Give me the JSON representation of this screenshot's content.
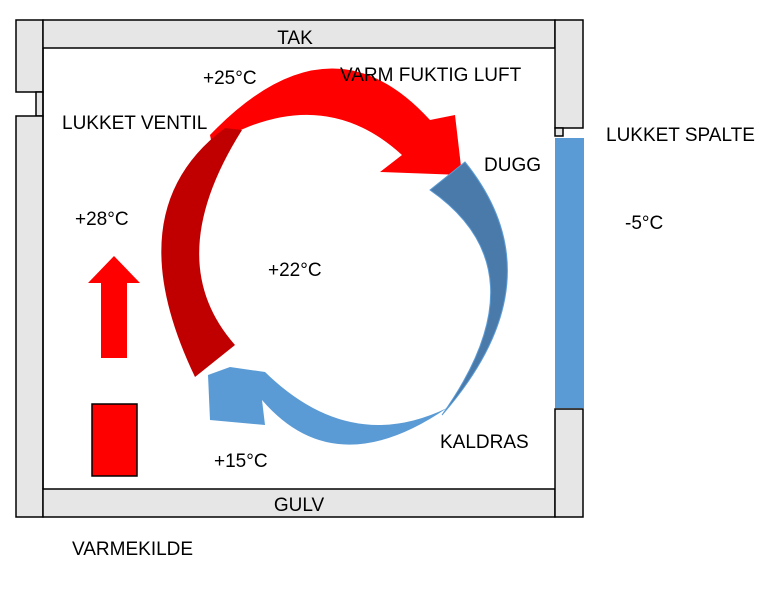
{
  "labels": {
    "roof": "TAK",
    "floor": "GULV",
    "warm_air": "VARM FUKTIG LUFT",
    "closed_valve": "LUKKET VENTIL",
    "closed_gap": "LUKKET SPALTE",
    "dew": "DUGG",
    "cold_draft": "KALDRAS",
    "heat_source": "VARMEKILDE"
  },
  "temperatures": {
    "top": "+25°C",
    "left": "+28°C",
    "center": "+22°C",
    "bottom": "+15°C",
    "outside": "-5°C"
  },
  "colors": {
    "warm": "#ff0000",
    "warm_dark": "#c00000",
    "cold": "#5b9bd5",
    "cold_dark": "#4a7aaa",
    "wall": "#e6e6e6",
    "outline": "#000000"
  }
}
